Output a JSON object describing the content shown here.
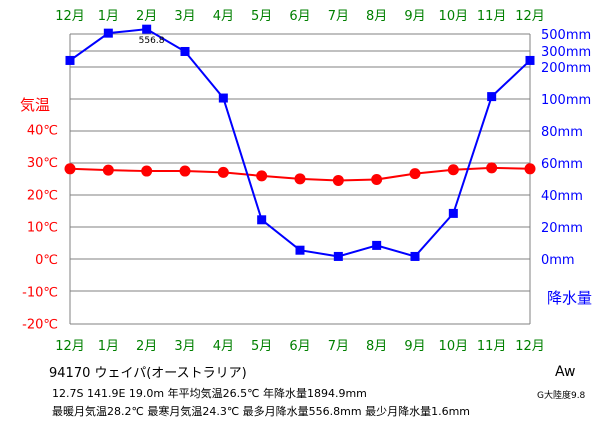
{
  "chart_data": {
    "type": "line",
    "title": "",
    "months_top": [
      "12月",
      "1月",
      "2月",
      "3月",
      "4月",
      "5月",
      "6月",
      "7月",
      "8月",
      "9月",
      "10月",
      "11月",
      "12月"
    ],
    "months_bottom": [
      "12月",
      "1月",
      "2月",
      "3月",
      "4月",
      "5月",
      "6月",
      "7月",
      "8月",
      "9月",
      "10月",
      "11月",
      "12月"
    ],
    "left_axis": {
      "label": "気温",
      "ticks": [
        "40℃",
        "30℃",
        "20℃",
        "10℃",
        "0℃",
        "-10℃",
        "-20℃"
      ],
      "tick_values": [
        40,
        30,
        20,
        10,
        0,
        -10,
        -20
      ],
      "unit": "℃"
    },
    "right_axis": {
      "label": "降水量",
      "ticks": [
        "500mm",
        "300mm",
        "200mm",
        "100mm",
        "80mm",
        "60mm",
        "40mm",
        "20mm",
        "0mm"
      ],
      "tick_values": [
        500,
        300,
        200,
        100,
        80,
        60,
        40,
        20,
        0
      ],
      "unit": "mm",
      "scale": "piecewise (0-100mm linear; 100-500mm compressed)"
    },
    "series": [
      {
        "name": "気温",
        "color": "#ff0000",
        "values": [
          27.9,
          27.5,
          27.2,
          27.2,
          26.8,
          25.7,
          24.8,
          24.3,
          24.6,
          26.4,
          27.6,
          28.2,
          27.9
        ]
      },
      {
        "name": "降水量",
        "color": "#0000ff",
        "values": [
          241,
          510,
          556.8,
          297,
          103,
          24.5,
          5.5,
          1.6,
          8.5,
          1.6,
          28.5,
          107.5,
          241
        ]
      }
    ],
    "annotations": [
      {
        "text": "556.8",
        "month_index": 2,
        "series": "降水量"
      }
    ],
    "grid": true,
    "colors": {
      "month_labels": "#008000",
      "temp_axis": "#ff0000",
      "precip_axis": "#0000ff",
      "grid": "#808080"
    }
  },
  "info": {
    "station": "94170  ウェイパ(オーストラリア)",
    "line1": "12.7S  141.9E  19.0m  年平均気温26.5℃  年降水量1894.9mm",
    "line2": "最暖月気温28.2℃  最寒月気温24.3℃  最多月降水量556.8mm  最少月降水量1.6mm",
    "climate": "Aw",
    "continentality": "G大陸度9.8"
  }
}
